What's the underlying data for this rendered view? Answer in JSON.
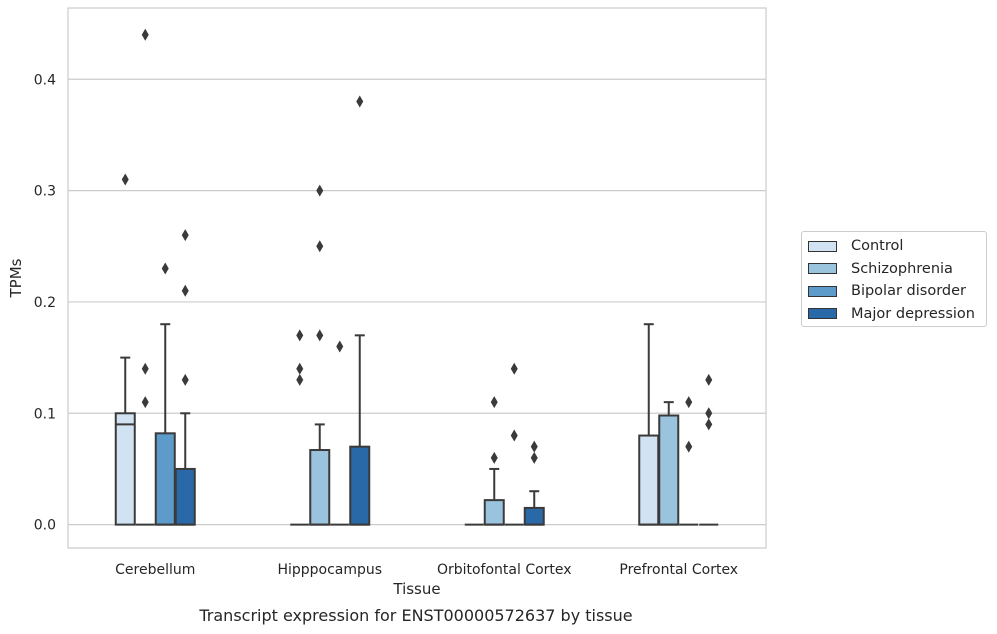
{
  "caption": "Transcript expression for ENST00000572637 by tissue",
  "chart_data": {
    "type": "box",
    "xlabel": "Tissue",
    "ylabel": "TPMs",
    "ylim": [
      -0.021,
      0.464
    ],
    "yticks": [
      0.0,
      0.1,
      0.2,
      0.3,
      0.4
    ],
    "ytick_labels": [
      "0.0",
      "0.1",
      "0.2",
      "0.3",
      "0.4"
    ],
    "grid": "horizontal",
    "legend_position": "right",
    "categories": [
      "Cerebellum",
      "Hipppocampus",
      "Orbitofontal Cortex",
      "Prefrontal Cortex"
    ],
    "series": [
      {
        "name": "Control",
        "color": "#d1e2f2",
        "boxes": [
          {
            "q1": 0.0,
            "median": 0.09,
            "q3": 0.1,
            "whisker_low": 0.0,
            "whisker_high": 0.15,
            "outliers": [
              0.31
            ]
          },
          {
            "q1": 0.0,
            "median": 0.0,
            "q3": 0.0,
            "whisker_low": 0.0,
            "whisker_high": 0.0,
            "outliers": [
              0.17,
              0.14,
              0.13
            ]
          },
          {
            "q1": 0.0,
            "median": 0.0,
            "q3": 0.0,
            "whisker_low": 0.0,
            "whisker_high": 0.0,
            "outliers": []
          },
          {
            "q1": 0.0,
            "median": 0.0,
            "q3": 0.08,
            "whisker_low": 0.0,
            "whisker_high": 0.18,
            "outliers": []
          }
        ]
      },
      {
        "name": "Schizophrenia",
        "color": "#9ac3de",
        "boxes": [
          {
            "q1": 0.0,
            "median": 0.0,
            "q3": 0.0,
            "whisker_low": 0.0,
            "whisker_high": 0.0,
            "outliers": [
              0.44,
              0.14,
              0.11
            ]
          },
          {
            "q1": 0.0,
            "median": 0.0,
            "q3": 0.067,
            "whisker_low": 0.0,
            "whisker_high": 0.09,
            "outliers": [
              0.3,
              0.25,
              0.17
            ]
          },
          {
            "q1": 0.0,
            "median": 0.0,
            "q3": 0.022,
            "whisker_low": 0.0,
            "whisker_high": 0.05,
            "outliers": [
              0.11,
              0.06
            ]
          },
          {
            "q1": 0.0,
            "median": 0.0,
            "q3": 0.098,
            "whisker_low": 0.0,
            "whisker_high": 0.11,
            "outliers": []
          }
        ]
      },
      {
        "name": "Bipolar disorder",
        "color": "#5d9cca",
        "boxes": [
          {
            "q1": 0.0,
            "median": 0.0,
            "q3": 0.082,
            "whisker_low": 0.0,
            "whisker_high": 0.18,
            "outliers": [
              0.23
            ]
          },
          {
            "q1": 0.0,
            "median": 0.0,
            "q3": 0.0,
            "whisker_low": 0.0,
            "whisker_high": 0.0,
            "outliers": [
              0.16
            ]
          },
          {
            "q1": 0.0,
            "median": 0.0,
            "q3": 0.0,
            "whisker_low": 0.0,
            "whisker_high": 0.0,
            "outliers": [
              0.14,
              0.08
            ]
          },
          {
            "q1": 0.0,
            "median": 0.0,
            "q3": 0.0,
            "whisker_low": 0.0,
            "whisker_high": 0.0,
            "outliers": [
              0.11,
              0.07
            ]
          }
        ]
      },
      {
        "name": "Major depression",
        "color": "#2a69a8",
        "boxes": [
          {
            "q1": 0.0,
            "median": 0.0,
            "q3": 0.05,
            "whisker_low": 0.0,
            "whisker_high": 0.1,
            "outliers": [
              0.26,
              0.21,
              0.13
            ]
          },
          {
            "q1": 0.0,
            "median": 0.0,
            "q3": 0.07,
            "whisker_low": 0.0,
            "whisker_high": 0.17,
            "outliers": [
              0.38
            ]
          },
          {
            "q1": 0.0,
            "median": 0.0,
            "q3": 0.015,
            "whisker_low": 0.0,
            "whisker_high": 0.03,
            "outliers": [
              0.07,
              0.06
            ]
          },
          {
            "q1": 0.0,
            "median": 0.0,
            "q3": 0.0,
            "whisker_low": 0.0,
            "whisker_high": 0.0,
            "outliers": [
              0.13,
              0.1,
              0.09
            ]
          }
        ]
      }
    ]
  }
}
